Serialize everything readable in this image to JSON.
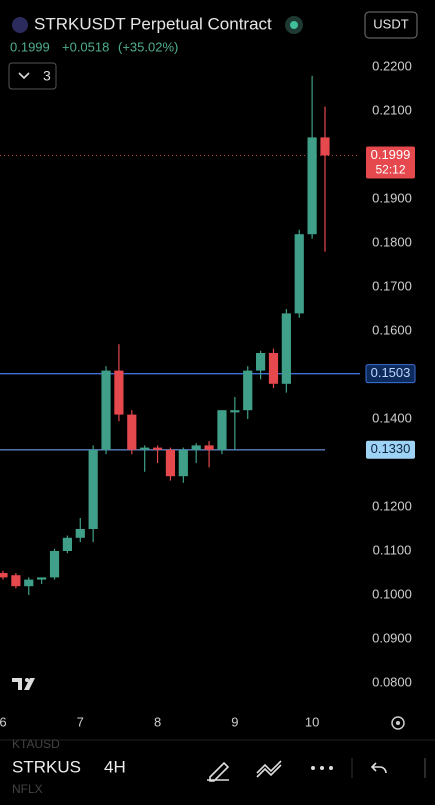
{
  "header": {
    "symbol": "STRKUSDT Perpetual Contract",
    "price": "0.1999",
    "change": "+0.0518",
    "change_pct": "(+35.02%)",
    "quote": "USDT",
    "indicator_count": "3"
  },
  "chart_data": {
    "type": "candlestick",
    "categories": [
      "6",
      null,
      null,
      null,
      null,
      null,
      "7",
      null,
      null,
      null,
      null,
      null,
      "8",
      null,
      null,
      null,
      null,
      null,
      "9",
      null,
      null,
      null,
      null,
      null,
      "10",
      null
    ],
    "open": [
      0.105,
      0.1045,
      0.102,
      0.1035,
      0.104,
      0.11,
      0.113,
      0.115,
      0.133,
      0.151,
      0.141,
      0.133,
      0.1335,
      0.133,
      0.127,
      0.133,
      0.134,
      0.133,
      0.1415,
      0.142,
      0.151,
      0.155,
      0.148,
      0.164,
      0.182,
      0.204
    ],
    "high": [
      0.1055,
      0.105,
      0.104,
      0.104,
      0.1105,
      0.1135,
      0.1175,
      0.134,
      0.152,
      0.157,
      0.142,
      0.134,
      0.134,
      0.1335,
      0.1335,
      0.1345,
      0.135,
      0.142,
      0.145,
      0.152,
      0.1555,
      0.156,
      0.165,
      0.183,
      0.218,
      0.211
    ],
    "low": [
      0.1035,
      0.1015,
      0.1,
      0.1025,
      0.1035,
      0.1095,
      0.112,
      0.112,
      0.132,
      0.1395,
      0.132,
      0.128,
      0.13,
      0.126,
      0.1255,
      0.13,
      0.129,
      0.132,
      0.133,
      0.14,
      0.149,
      0.147,
      0.146,
      0.163,
      0.181,
      0.178
    ],
    "close": [
      0.104,
      0.102,
      0.1035,
      0.104,
      0.11,
      0.113,
      0.115,
      0.133,
      0.151,
      0.141,
      0.133,
      0.1335,
      0.133,
      0.127,
      0.133,
      0.134,
      0.133,
      0.142,
      0.142,
      0.151,
      0.155,
      0.148,
      0.164,
      0.182,
      0.204,
      0.1999
    ],
    "up_color": "#3f9f88",
    "down_color": "#e5484d",
    "ylim": [
      0.08,
      0.22
    ],
    "yticks": [
      {
        "value": 0.08,
        "label": "0.0800"
      },
      {
        "value": 0.09,
        "label": "0.0900"
      },
      {
        "value": 0.1,
        "label": "0.1000"
      },
      {
        "value": 0.11,
        "label": "0.1100"
      },
      {
        "value": 0.12,
        "label": "0.1200"
      },
      {
        "value": 0.14,
        "label": "0.1400"
      },
      {
        "value": 0.16,
        "label": "0.1600"
      },
      {
        "value": 0.17,
        "label": "0.1700"
      },
      {
        "value": 0.18,
        "label": "0.1800"
      },
      {
        "value": 0.19,
        "label": "0.1900"
      },
      {
        "value": 0.21,
        "label": "0.2100"
      },
      {
        "value": 0.22,
        "label": "0.2200"
      }
    ],
    "hlines": [
      {
        "value": 0.1503,
        "label": "0.1503",
        "color": "#3d6fd6"
      },
      {
        "value": 0.133,
        "label": "0.1330",
        "color": "#5b7fc0"
      }
    ],
    "last_price": {
      "value": 0.1999,
      "label": "0.1999",
      "countdown": "52:12",
      "color": "#e5484d"
    }
  },
  "toolbar": {
    "symbol": "STRKUS",
    "interval": "4H",
    "ghost_top": "KTAUSD",
    "ghost_bottom": "NFLX"
  }
}
